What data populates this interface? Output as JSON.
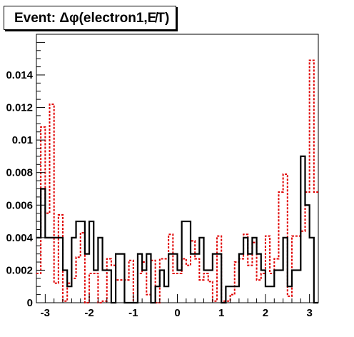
{
  "chart_data": {
    "type": "histogram",
    "title": "Event: Δφ(electron1,E̸T)",
    "xlabel": "",
    "ylabel": "",
    "xlim": [
      -3.2,
      3.2
    ],
    "ylim": [
      0,
      0.0165
    ],
    "x_ticks": [
      -3,
      -2,
      -1,
      0,
      1,
      2,
      3
    ],
    "x_tick_labels": [
      "-3",
      "-2",
      "-1",
      "0",
      "1",
      "2",
      "3"
    ],
    "y_ticks": [
      0,
      0.002,
      0.004,
      0.006,
      0.008,
      0.01,
      0.012,
      0.014
    ],
    "y_tick_labels": [
      "0",
      "0.002",
      "0.004",
      "0.006",
      "0.008",
      "0.01",
      "0.012",
      "0.014"
    ],
    "bin_edges": [
      -3.2,
      -3.1,
      -3.0,
      -2.9,
      -2.8,
      -2.7,
      -2.6,
      -2.5,
      -2.4,
      -2.3,
      -2.2,
      -2.1,
      -2.0,
      -1.9,
      -1.8,
      -1.7,
      -1.6,
      -1.5,
      -1.4,
      -1.3,
      -1.2,
      -1.1,
      -1.0,
      -0.9,
      -0.8,
      -0.7,
      -0.6,
      -0.5,
      -0.4,
      -0.3,
      -0.2,
      -0.1,
      0.0,
      0.1,
      0.2,
      0.3,
      0.4,
      0.5,
      0.6,
      0.7,
      0.8,
      0.9,
      1.0,
      1.1,
      1.2,
      1.3,
      1.4,
      1.5,
      1.6,
      1.7,
      1.8,
      1.9,
      2.0,
      2.1,
      2.2,
      2.3,
      2.4,
      2.5,
      2.6,
      2.7,
      2.8,
      2.9,
      3.0,
      3.1,
      3.2
    ],
    "series": [
      {
        "color": "#000000",
        "style": "solid",
        "values": [
          0.004,
          0.007,
          0.004,
          0.004,
          0.004,
          0.004,
          0.002,
          0.001,
          0.004,
          0.005,
          0.005,
          0.003,
          0.005,
          0.002,
          0.004,
          0.002,
          0.002,
          0.0,
          0.003,
          0.003,
          0.0,
          0.0,
          0.0,
          0.003,
          0.002,
          0.003,
          0.0,
          0.001,
          0.002,
          0.001,
          0.003,
          0.003,
          0.002,
          0.005,
          0.005,
          0.003,
          0.003,
          0.004,
          0.002,
          0.002,
          0.003,
          0.003,
          0.0,
          0.001,
          0.001,
          0.001,
          0.003,
          0.004,
          0.003,
          0.004,
          0.003,
          0.002,
          0.001,
          0.001,
          0.002,
          0.002,
          0.004,
          0.001,
          0.002,
          0.002,
          0.009,
          0.006,
          0.004,
          0.0
        ]
      },
      {
        "color": "#e00000",
        "style": "dotted",
        "values": [
          0.0018,
          0.0108,
          0.0055,
          0.0122,
          0.0012,
          0.0054,
          0.0001,
          0.0012,
          0.0015,
          0.0028,
          0.0043,
          0.0,
          0.0018,
          0.0018,
          0.0,
          0.0001,
          0.0027,
          0.0023,
          0.0014,
          0.0014,
          0.0014,
          0.0026,
          0.0,
          0.0018,
          0.0025,
          0.0005,
          0.0026,
          0.0,
          0.0027,
          0.0027,
          0.0042,
          0.0018,
          0.0018,
          0.0027,
          0.0023,
          0.0038,
          0.0027,
          0.0014,
          0.0018,
          0.0013,
          0.0001,
          0.0041,
          0.0001,
          0.0001,
          0.0005,
          0.0025,
          0.0027,
          0.0042,
          0.0023,
          0.0037,
          0.0014,
          0.0018,
          0.0041,
          0.0018,
          0.0027,
          0.0068,
          0.0079,
          0.0004,
          0.0041,
          0.0041,
          0.0044,
          0.0068,
          0.0149,
          0.0068
        ]
      }
    ]
  }
}
